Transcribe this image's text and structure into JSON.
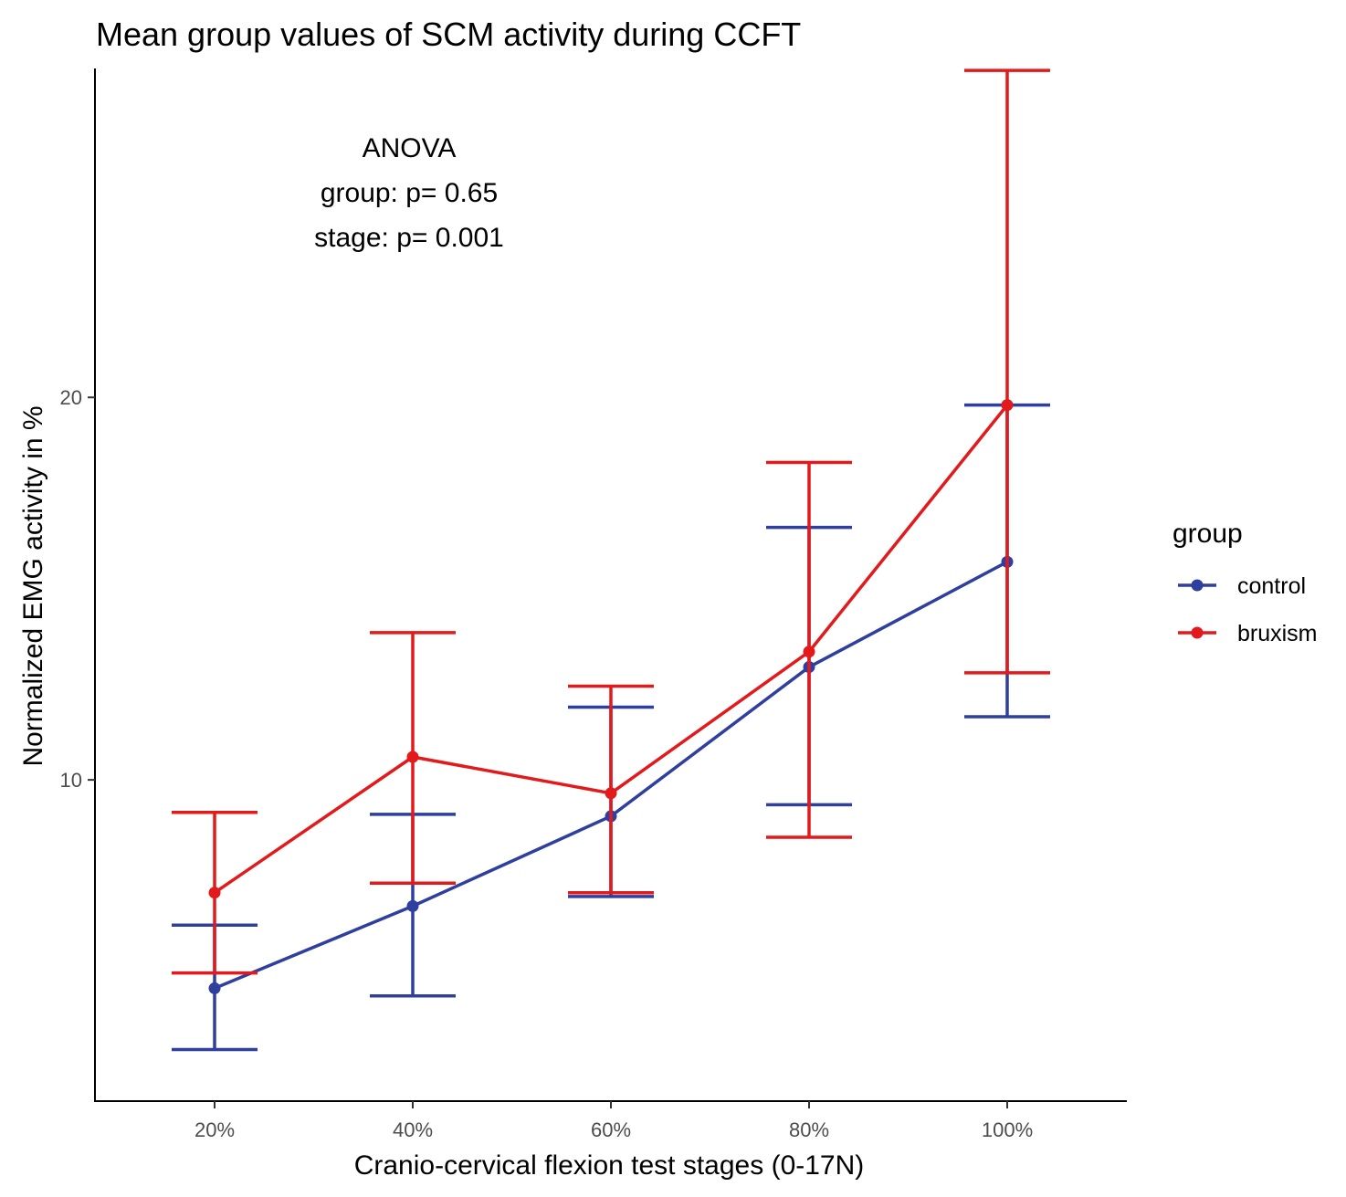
{
  "chart_data": {
    "type": "line",
    "title": "Mean group values of SCM activity during CCFT",
    "xlabel": "Cranio-cervical flexion test stages (0-17N)",
    "ylabel": "Normalized EMG activity in %",
    "categories": [
      "20%",
      "40%",
      "60%",
      "80%",
      "100%"
    ],
    "ylim": [
      1.6,
      28.6
    ],
    "yticks": [
      10,
      20
    ],
    "grid": false,
    "legend": {
      "title": "group",
      "position": "right"
    },
    "series": [
      {
        "name": "control",
        "color": "#2e3f9e",
        "values": [
          4.55,
          6.7,
          9.05,
          12.95,
          15.7
        ],
        "lower": [
          2.95,
          4.35,
          6.95,
          9.35,
          11.65
        ],
        "upper": [
          6.2,
          9.1,
          11.9,
          16.6,
          19.8
        ]
      },
      {
        "name": "bruxism",
        "color": "#e31a1c",
        "values": [
          7.05,
          10.6,
          9.65,
          13.35,
          19.8
        ],
        "lower": [
          4.95,
          7.3,
          7.05,
          8.5,
          12.8
        ],
        "upper": [
          9.15,
          13.85,
          12.45,
          18.3,
          28.55
        ]
      }
    ],
    "annotations": [
      "ANOVA",
      "group: p= 0.65",
      "stage: p= 0.001"
    ]
  }
}
